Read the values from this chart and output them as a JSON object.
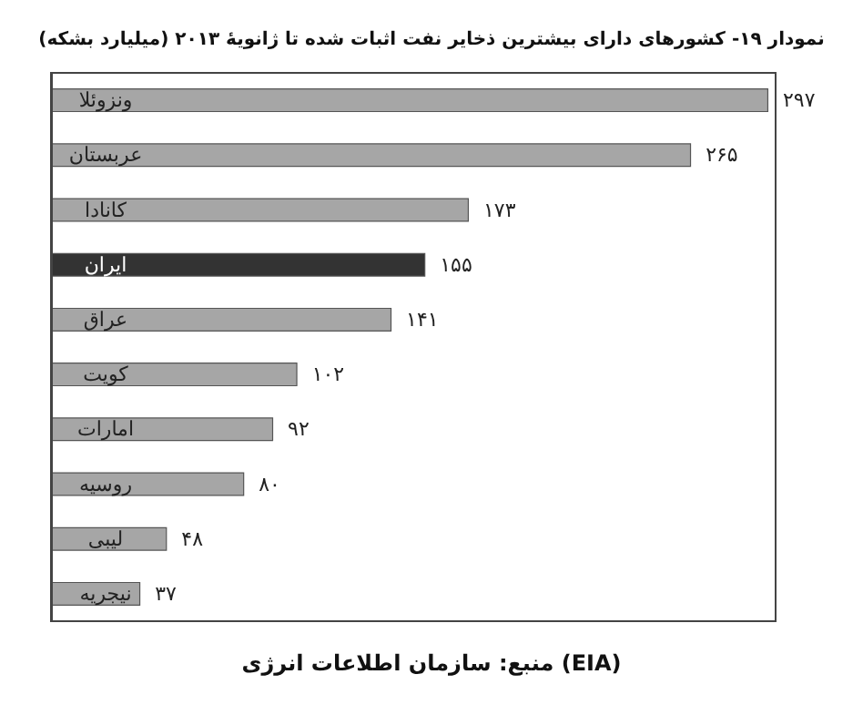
{
  "chart_data": {
    "type": "bar",
    "orientation": "horizontal",
    "title": "نمودار ۱۹- کشورهای دارای بیشترین ذخایر نفت اثبات شده تا ژانویهٔ ۲۰۱۳ (میلیارد بشکه)",
    "categories": [
      "ونزوئلا",
      "عربستان",
      "کانادا",
      "ایران",
      "عراق",
      "کویت",
      "امارات",
      "روسیه",
      "لیبی",
      "نیجریه"
    ],
    "values": [
      297,
      265,
      173,
      155,
      141,
      102,
      92,
      80,
      48,
      37
    ],
    "value_labels": [
      "۲۹۷",
      "۲۶۵",
      "۱۷۳",
      "۱۵۵",
      "۱۴۱",
      "۱۰۲",
      "۹۲",
      "۸۰",
      "۴۸",
      "۳۷"
    ],
    "colors": [
      "#a6a6a6",
      "#a6a6a6",
      "#a6a6a6",
      "#333333",
      "#a6a6a6",
      "#a6a6a6",
      "#a6a6a6",
      "#a6a6a6",
      "#a6a6a6",
      "#a6a6a6"
    ],
    "annotations": [
      "منبع: سازمان اطلاعات انرژی (EIA)"
    ]
  }
}
